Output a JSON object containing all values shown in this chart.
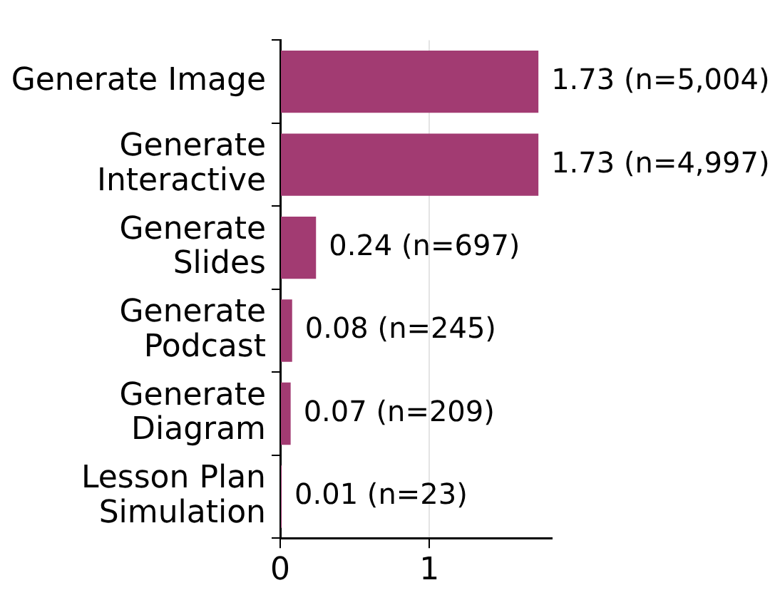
{
  "chart_data": {
    "type": "bar",
    "orientation": "horizontal",
    "categories": [
      "Generate Image",
      "Generate\nInteractive",
      "Generate\nSlides",
      "Generate\nPodcast",
      "Generate\nDiagram",
      "Lesson Plan\nSimulation"
    ],
    "values": [
      1.73,
      1.73,
      0.24,
      0.08,
      0.07,
      0.01
    ],
    "value_labels": [
      "1.73 (n=5,004)",
      "1.73 (n=4,997)",
      "0.24 (n=697)",
      "0.08 (n=245)",
      "0.07 (n=209)",
      "0.01 (n=23)"
    ],
    "color": "#a23b72",
    "xlim": [
      0,
      1.82
    ],
    "xticks": [
      0,
      1
    ],
    "grid": "x",
    "legend": false
  }
}
